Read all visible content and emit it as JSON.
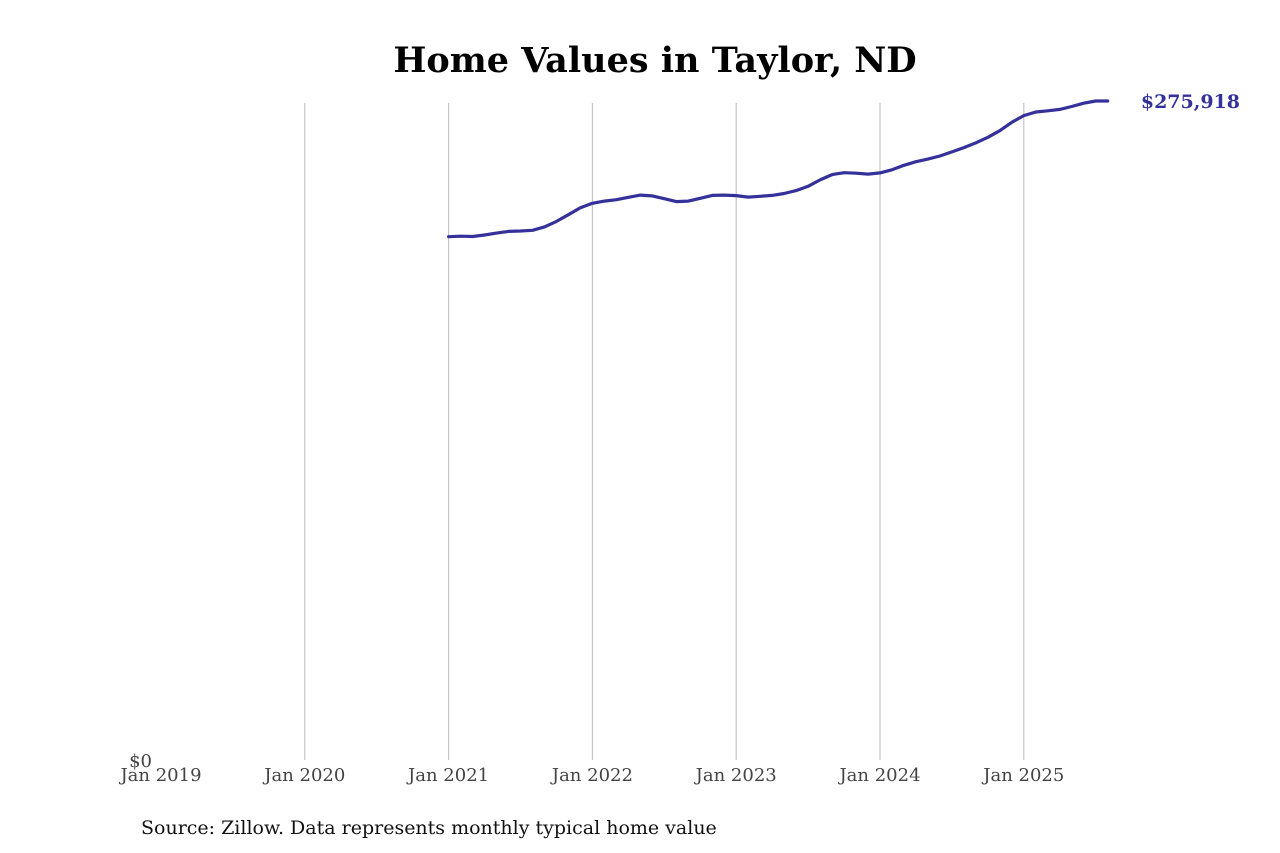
{
  "chart_data": {
    "type": "line",
    "title": "Home Values in Taylor, ND",
    "xlabel": "",
    "ylabel": "",
    "x_ticks": [
      "Jan 2019",
      "Jan 2020",
      "Jan 2021",
      "Jan 2022",
      "Jan 2023",
      "Jan 2024",
      "Jan 2025"
    ],
    "y_ticks": [
      "$0"
    ],
    "xlim": [
      "2019-01",
      "2025-12"
    ],
    "ylim": [
      0,
      280000
    ],
    "grid": "vertical",
    "legend": "none",
    "series": [
      {
        "color": "#35319a",
        "end_label": "$275,918",
        "x": [
          "2021-01",
          "2021-02",
          "2021-03",
          "2021-04",
          "2021-05",
          "2021-06",
          "2021-07",
          "2021-08",
          "2021-09",
          "2021-10",
          "2021-11",
          "2021-12",
          "2022-01",
          "2022-02",
          "2022-03",
          "2022-04",
          "2022-05",
          "2022-06",
          "2022-07",
          "2022-08",
          "2022-09",
          "2022-10",
          "2022-11",
          "2022-12",
          "2023-01",
          "2023-02",
          "2023-03",
          "2023-04",
          "2023-05",
          "2023-06",
          "2023-07",
          "2023-08",
          "2023-09",
          "2023-10",
          "2023-11",
          "2023-12",
          "2024-01",
          "2024-02",
          "2024-03",
          "2024-04",
          "2024-05",
          "2024-06",
          "2024-07",
          "2024-08",
          "2024-09",
          "2024-10",
          "2024-11",
          "2024-12",
          "2025-01",
          "2025-02",
          "2025-03",
          "2025-04",
          "2025-05",
          "2025-06",
          "2025-07",
          "2025-08"
        ],
        "y": [
          219100,
          219300,
          219200,
          219800,
          220600,
          221300,
          221500,
          221800,
          223200,
          225500,
          228300,
          231200,
          233100,
          234000,
          234600,
          235600,
          236500,
          236200,
          235000,
          233800,
          234000,
          235200,
          236400,
          236500,
          236300,
          235700,
          236000,
          236400,
          237200,
          238400,
          240200,
          242900,
          245100,
          245900,
          245700,
          245300,
          245800,
          247100,
          249000,
          250500,
          251600,
          252900,
          254600,
          256400,
          258400,
          260700,
          263500,
          267000,
          269800,
          271300,
          271800,
          272400,
          273600,
          275000,
          275918,
          275918
        ]
      }
    ]
  },
  "footer": {
    "source": "Source: Zillow. Data represents monthly typical home value"
  }
}
